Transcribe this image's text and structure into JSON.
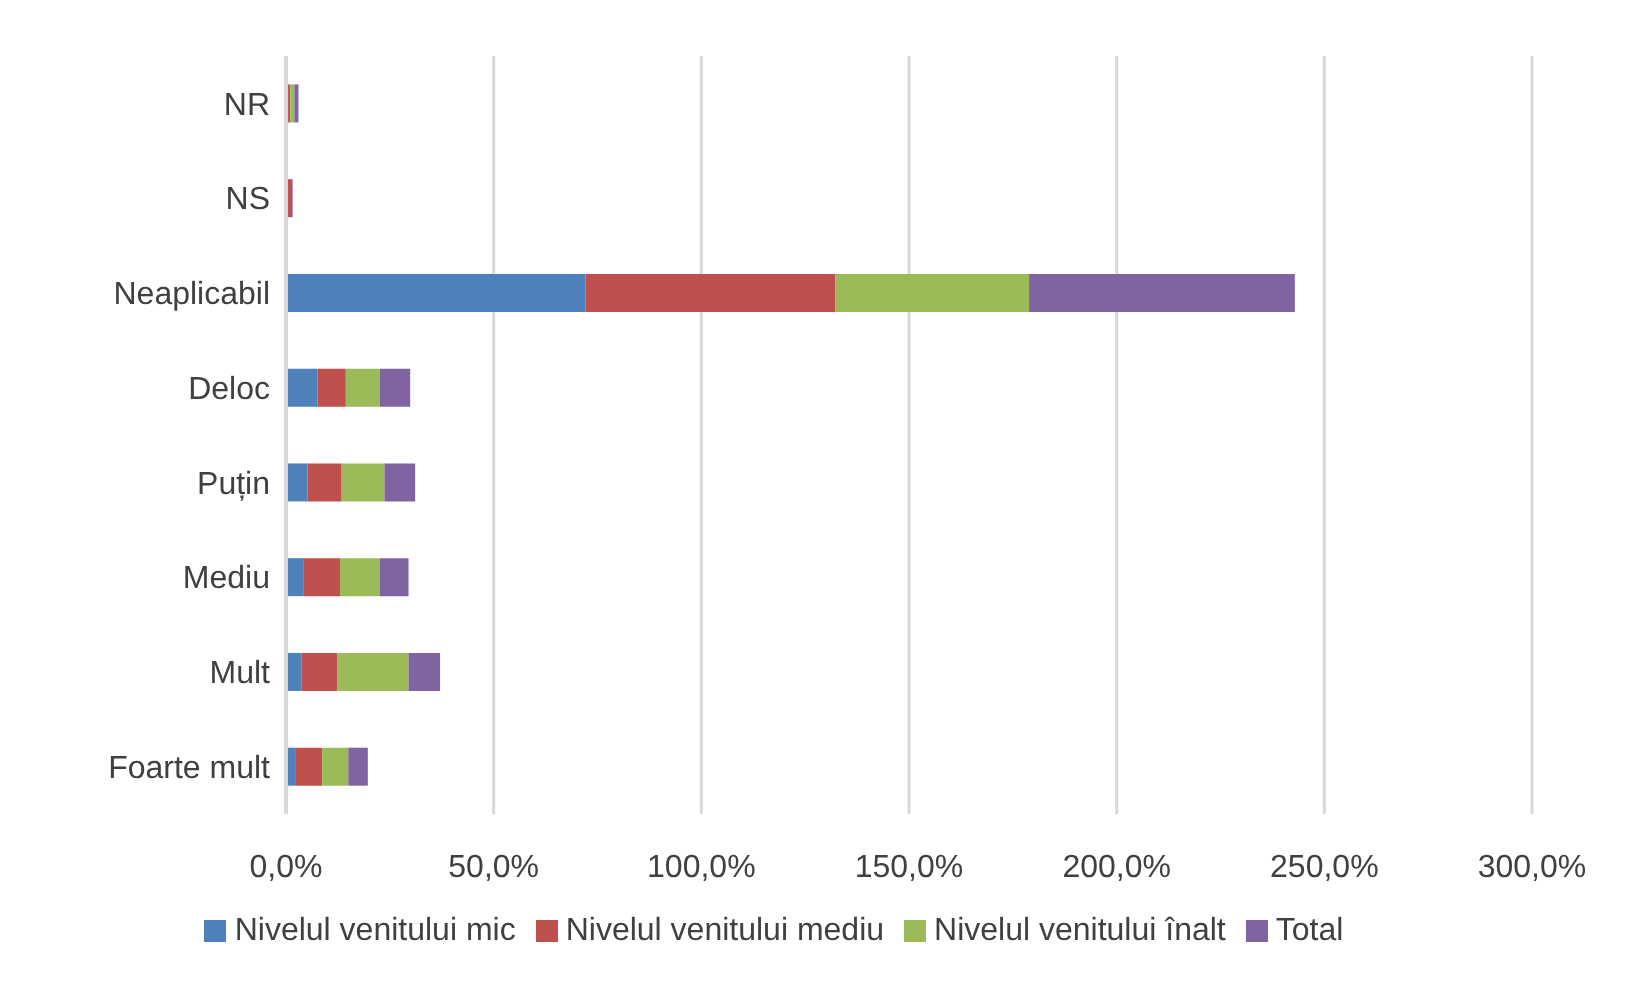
{
  "chart_data": {
    "type": "bar",
    "orientation": "horizontal",
    "stacked": true,
    "categories": [
      "NR",
      "NS",
      "Neaplicabil",
      "Deloc",
      "Puțin",
      "Mediu",
      "Mult",
      "Foarte mult"
    ],
    "series": [
      {
        "name": "Nivelul venitului mic",
        "color": "#4f81bd",
        "values": [
          0.5,
          0.4,
          72.1,
          7.6,
          5.2,
          4.3,
          3.8,
          2.2
        ]
      },
      {
        "name": "Nivelul venitului mediu",
        "color": "#c0504d",
        "values": [
          0.5,
          0.8,
          60.1,
          6.8,
          8.2,
          8.7,
          8.5,
          6.5
        ]
      },
      {
        "name": "Nivelul venitului înalt",
        "color": "#9bbb59",
        "values": [
          1,
          0,
          46.7,
          8.2,
          10.3,
          9.6,
          17.2,
          6.3
        ]
      },
      {
        "name": "Total",
        "color": "#8064a2",
        "values": [
          1,
          0.4,
          64,
          7.3,
          7.4,
          6.9,
          7.6,
          4.7
        ]
      }
    ],
    "xlim": [
      0,
      300
    ],
    "xticks": [
      {
        "value": 0,
        "label": "0,0%"
      },
      {
        "value": 50,
        "label": "50,0%"
      },
      {
        "value": 100,
        "label": "100,0%"
      },
      {
        "value": 150,
        "label": "150,0%"
      },
      {
        "value": 200,
        "label": "200,0%"
      },
      {
        "value": 250,
        "label": "250,0%"
      },
      {
        "value": 300,
        "label": "300,0%"
      }
    ],
    "grid": "x",
    "legend": "bottom"
  }
}
